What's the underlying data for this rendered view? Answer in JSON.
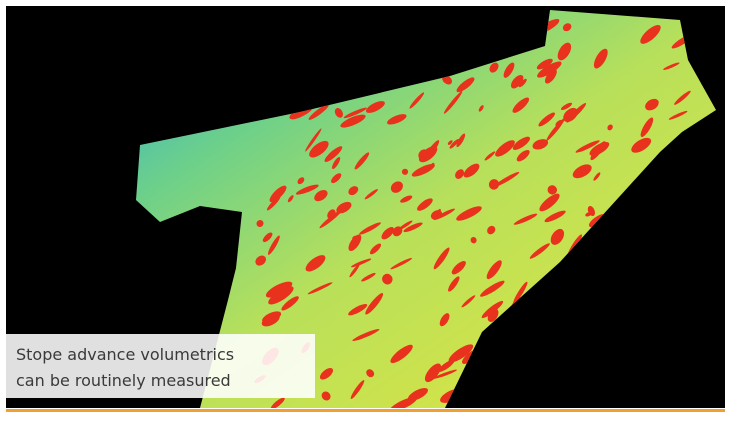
{
  "caption": {
    "lines": [
      "Stope advance volumetrics",
      "can be routinely measured"
    ]
  }
}
